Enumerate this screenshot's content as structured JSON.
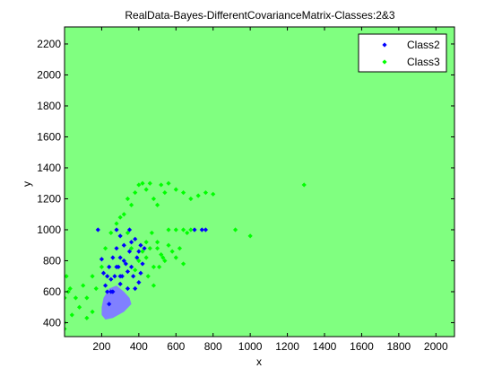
{
  "chart_data": {
    "type": "scatter",
    "title": "RealData-Bayes-DifferentCovarianceMatrix-Classes:2&3",
    "xlabel": "x",
    "ylabel": "y",
    "xlim": [
      0,
      2100
    ],
    "ylim": [
      310,
      2310
    ],
    "xticks": [
      200,
      400,
      600,
      800,
      1000,
      1200,
      1400,
      1600,
      1800,
      2000
    ],
    "yticks": [
      400,
      600,
      800,
      1000,
      1200,
      1400,
      1600,
      1800,
      2000,
      2200
    ],
    "grid": false,
    "legend": "top-right",
    "background_color": "#80ff80",
    "region_color": "#8080ff",
    "series": [
      {
        "name": "Class2",
        "color": "#0000ff",
        "marker": "diamond",
        "points": [
          [
            180,
            1000
          ],
          [
            200,
            810
          ],
          [
            210,
            720
          ],
          [
            220,
            640
          ],
          [
            230,
            700
          ],
          [
            240,
            760
          ],
          [
            250,
            600
          ],
          [
            260,
            820
          ],
          [
            270,
            700
          ],
          [
            280,
            880
          ],
          [
            290,
            760
          ],
          [
            300,
            650
          ],
          [
            300,
            820
          ],
          [
            310,
            700
          ],
          [
            320,
            900
          ],
          [
            330,
            780
          ],
          [
            340,
            620
          ],
          [
            350,
            860
          ],
          [
            360,
            760
          ],
          [
            370,
            700
          ],
          [
            380,
            940
          ],
          [
            390,
            820
          ],
          [
            400,
            660
          ],
          [
            410,
            900
          ],
          [
            420,
            780
          ],
          [
            430,
            880
          ],
          [
            300,
            960
          ],
          [
            280,
            1000
          ],
          [
            260,
            600
          ],
          [
            240,
            520
          ],
          [
            350,
            1000
          ],
          [
            700,
            1000
          ],
          [
            740,
            1000
          ],
          [
            760,
            1000
          ],
          [
            320,
            800
          ],
          [
            340,
            730
          ],
          [
            280,
            760
          ],
          [
            400,
            860
          ],
          [
            360,
            920
          ],
          [
            250,
            680
          ],
          [
            230,
            600
          ],
          [
            380,
            620
          ],
          [
            410,
            720
          ],
          [
            300,
            700
          ]
        ]
      },
      {
        "name": "Class3",
        "color": "#00ff00",
        "marker": "diamond",
        "points": [
          [
            20,
            600
          ],
          [
            40,
            450
          ],
          [
            60,
            560
          ],
          [
            80,
            500
          ],
          [
            100,
            640
          ],
          [
            120,
            560
          ],
          [
            150,
            700
          ],
          [
            170,
            620
          ],
          [
            200,
            760
          ],
          [
            220,
            880
          ],
          [
            250,
            980
          ],
          [
            280,
            1040
          ],
          [
            300,
            1080
          ],
          [
            320,
            1100
          ],
          [
            340,
            1200
          ],
          [
            360,
            1160
          ],
          [
            380,
            1240
          ],
          [
            400,
            1290
          ],
          [
            420,
            1300
          ],
          [
            440,
            1260
          ],
          [
            460,
            1300
          ],
          [
            480,
            1200
          ],
          [
            500,
            1160
          ],
          [
            520,
            1290
          ],
          [
            540,
            1240
          ],
          [
            560,
            1300
          ],
          [
            600,
            1260
          ],
          [
            640,
            1240
          ],
          [
            680,
            1200
          ],
          [
            720,
            1220
          ],
          [
            760,
            1240
          ],
          [
            800,
            1230
          ],
          [
            440,
            820
          ],
          [
            460,
            880
          ],
          [
            480,
            760
          ],
          [
            500,
            920
          ],
          [
            520,
            840
          ],
          [
            540,
            800
          ],
          [
            560,
            900
          ],
          [
            580,
            860
          ],
          [
            600,
            820
          ],
          [
            620,
            880
          ],
          [
            640,
            780
          ],
          [
            420,
            860
          ],
          [
            400,
            800
          ],
          [
            380,
            740
          ],
          [
            360,
            880
          ],
          [
            340,
            980
          ],
          [
            660,
            980
          ],
          [
            680,
            1000
          ],
          [
            920,
            1000
          ],
          [
            1000,
            960
          ],
          [
            1290,
            1290
          ],
          [
            0,
            560
          ],
          [
            0,
            400
          ],
          [
            0,
            360
          ],
          [
            10,
            700
          ],
          [
            30,
            620
          ],
          [
            120,
            430
          ],
          [
            150,
            470
          ],
          [
            560,
            1000
          ],
          [
            600,
            1000
          ],
          [
            640,
            1000
          ],
          [
            440,
            920
          ],
          [
            470,
            980
          ],
          [
            500,
            880
          ],
          [
            530,
            820
          ],
          [
            450,
            700
          ],
          [
            480,
            640
          ],
          [
            510,
            760
          ]
        ]
      }
    ]
  }
}
